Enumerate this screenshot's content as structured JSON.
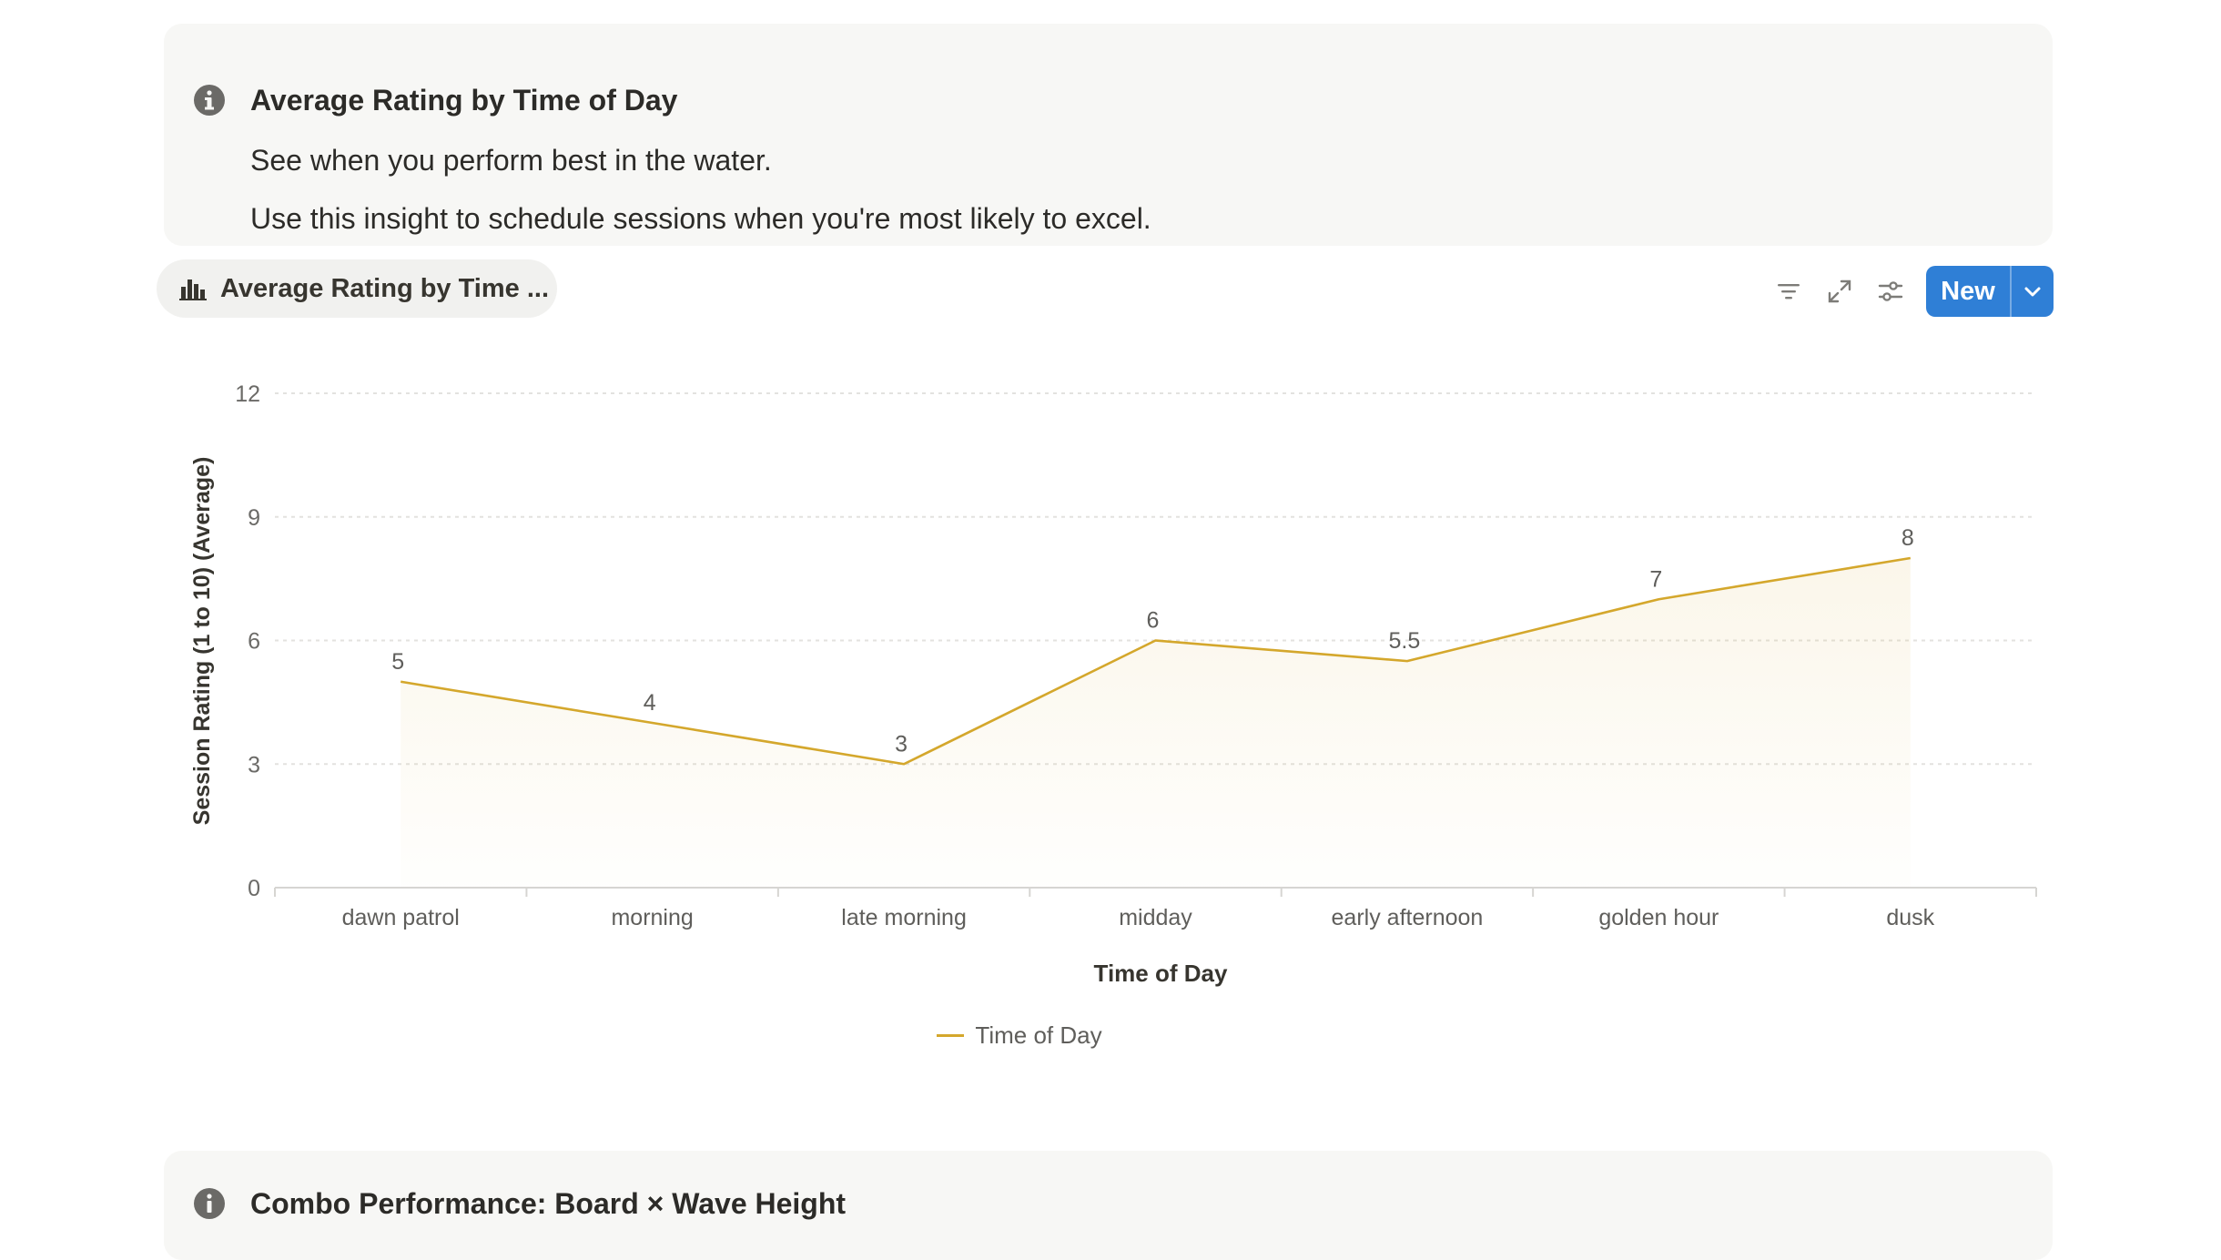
{
  "callout": {
    "title": "Average Rating by Time of Day",
    "line1": "See when you perform best in the water.",
    "line2": "Use this insight to schedule sessions when you're most likely to excel.",
    "icon": "info-icon"
  },
  "view_tab": {
    "label": "Average Rating by Time ...",
    "icon": "bar-chart-icon"
  },
  "toolbar": {
    "icons": [
      "filter-icon",
      "expand-icon",
      "settings-icon"
    ],
    "new_label": "New",
    "accent": "#2f7fd6"
  },
  "next_callout": {
    "title": "Combo Performance: Board × Wave Height"
  },
  "chart_data": {
    "type": "area",
    "categories": [
      "dawn patrol",
      "morning",
      "late morning",
      "midday",
      "early afternoon",
      "golden hour",
      "dusk"
    ],
    "series": [
      {
        "name": "Time of Day",
        "values": [
          5,
          4,
          3,
          6,
          5.5,
          7,
          8
        ],
        "color": "#d4a72c"
      }
    ],
    "data_labels": [
      "5",
      "4",
      "3",
      "6",
      "5.5",
      "7",
      "8"
    ],
    "yticks": [
      "0",
      "3",
      "6",
      "9",
      "12"
    ],
    "ylim": [
      0,
      12
    ],
    "xlabel": "Time of Day",
    "ylabel": "Session Rating (1 to 10) (Average)",
    "legend": "bottom-center",
    "grid": true
  }
}
